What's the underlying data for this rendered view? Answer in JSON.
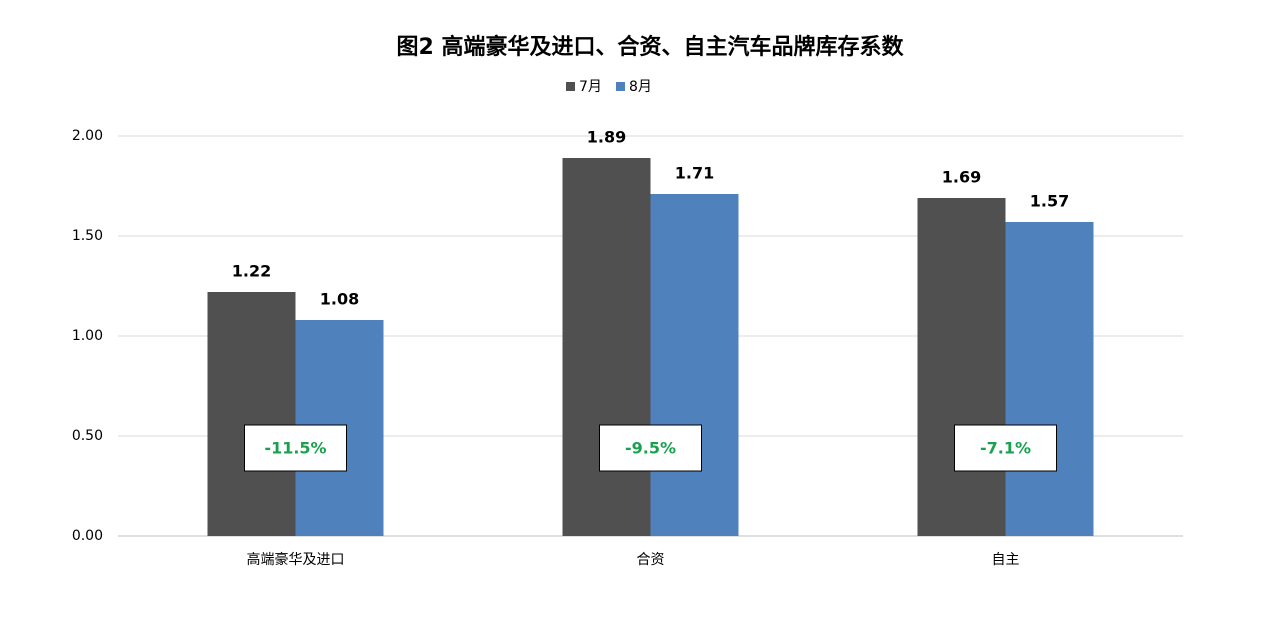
{
  "chart_data": {
    "type": "bar",
    "title": "图2  高端豪华及进口、合资、自主汽车品牌库存系数",
    "categories": [
      "高端豪华及进口",
      "合资",
      "自主"
    ],
    "series": [
      {
        "name": "7月",
        "color": "#505050",
        "values": [
          1.22,
          1.89,
          1.69
        ]
      },
      {
        "name": "8月",
        "color": "#4f81bd",
        "values": [
          1.08,
          1.71,
          1.57
        ]
      }
    ],
    "annotations": [
      "-11.5%",
      "-9.5%",
      "-7.1%"
    ],
    "ylim": [
      0,
      2
    ],
    "yticks": [
      {
        "value": 0,
        "label": "0.00"
      },
      {
        "value": 0.5,
        "label": "0.50"
      },
      {
        "value": 1,
        "label": "1.00"
      },
      {
        "value": 1.5,
        "label": "1.50"
      },
      {
        "value": 2,
        "label": "2.00"
      }
    ],
    "grid": true,
    "legend": "top"
  }
}
